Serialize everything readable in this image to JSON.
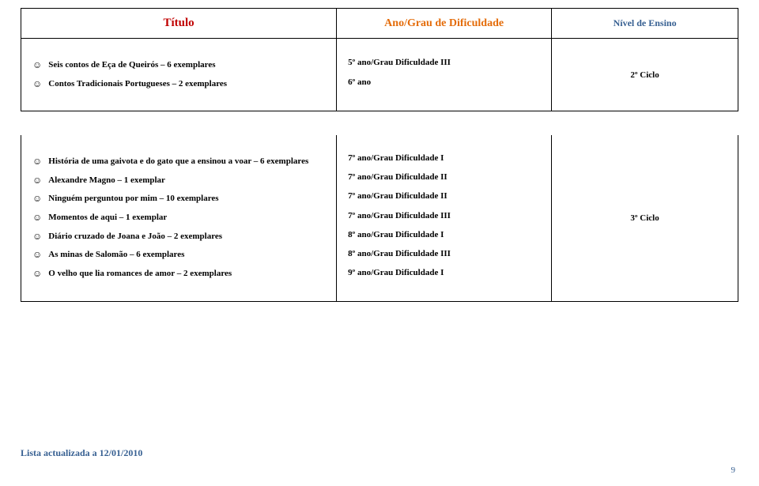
{
  "header": {
    "col1": "Título",
    "col2": "Ano/Grau de Dificuldade",
    "col3": "Nível de Ensino"
  },
  "smiley": "☺",
  "block1": {
    "titles": [
      "Seis contos de Eça de Queirós – 6 exemplares",
      "Contos Tradicionais Portugueses – 2 exemplares"
    ],
    "grades": [
      "5º ano/Grau Dificuldade III",
      "6º ano"
    ],
    "level": "2º Ciclo"
  },
  "block2": {
    "titles": [
      "História de uma gaivota e do gato que a ensinou a voar – 6 exemplares",
      "Alexandre Magno – 1 exemplar",
      "Ninguém perguntou por mim – 10 exemplares",
      "Momentos de aqui – 1 exemplar",
      "Diário cruzado de Joana e João – 2 exemplares",
      "As minas de Salomão – 6 exemplares",
      "O velho que lia romances de amor – 2 exemplares"
    ],
    "grades": [
      "7º ano/Grau Dificuldade I",
      "7º ano/Grau Dificuldade II",
      "7º ano/Grau Dificuldade II",
      "7º ano/Grau Dificuldade III",
      "8º ano/Grau Dificuldade I",
      "8º ano/Grau Dificuldade III",
      "9º ano/Grau Dificuldade I"
    ],
    "level": "3º Ciclo"
  },
  "footer": "Lista actualizada a 12/01/2010",
  "page_number": "9"
}
